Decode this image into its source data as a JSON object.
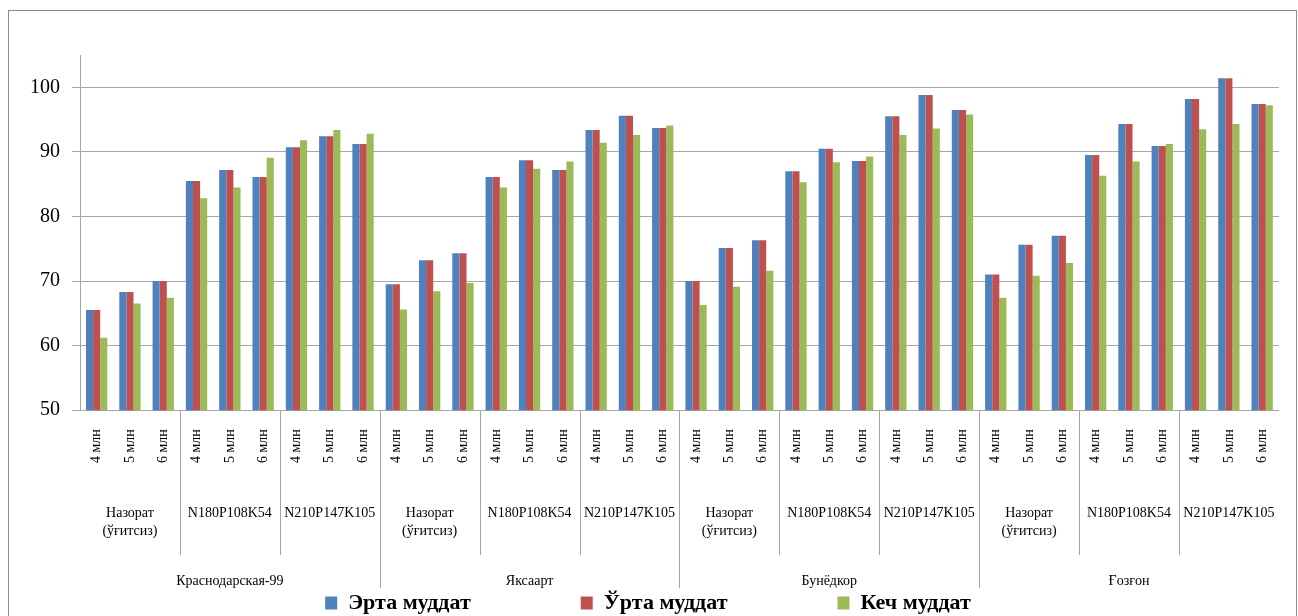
{
  "chart_data": {
    "type": "bar",
    "categories": [
      "4 млн",
      "5 млн",
      "6 млн",
      "4 млн",
      "5 млн",
      "6 млн",
      "4 млн",
      "5 млн",
      "6 млн",
      "4 млн",
      "5 млн",
      "6 млн",
      "4 млн",
      "5 млн",
      "6 млн",
      "4 млн",
      "5 млн",
      "6 млн",
      "4 млн",
      "5 млн",
      "6 млн",
      "4 млн",
      "5 млн",
      "6 млн",
      "4 млн",
      "5 млн",
      "6 млн",
      "4 млн",
      "5 млн",
      "6 млн",
      "4 млн",
      "5 млн",
      "6 млн",
      "4 млн",
      "5 млн",
      "6 млн"
    ],
    "series": [
      {
        "name": "Эрта муддат",
        "color": "#4f81bd",
        "values": [
          65.5,
          68.3,
          70.0,
          85.5,
          87.2,
          86.1,
          90.7,
          92.4,
          91.2,
          69.5,
          73.2,
          74.3,
          86.1,
          88.7,
          87.2,
          93.4,
          95.6,
          93.7,
          70.0,
          75.1,
          76.3,
          87.0,
          90.5,
          88.6,
          95.5,
          98.8,
          96.5,
          71.0,
          75.6,
          77.0,
          89.5,
          94.3,
          90.9,
          98.2,
          101.4,
          97.4
        ]
      },
      {
        "name": "Ўрта муддат",
        "color": "#c0504d",
        "values": [
          65.5,
          68.3,
          70.0,
          85.5,
          87.2,
          86.1,
          90.7,
          92.4,
          91.2,
          69.5,
          73.2,
          74.3,
          86.1,
          88.7,
          87.2,
          93.4,
          95.6,
          93.7,
          70.0,
          75.1,
          76.3,
          87.0,
          90.5,
          88.6,
          95.5,
          98.8,
          96.5,
          71.0,
          75.6,
          77.0,
          89.5,
          94.3,
          90.9,
          98.2,
          101.4,
          97.4
        ]
      },
      {
        "name": "Кеч муддат",
        "color": "#9bbb59",
        "values": [
          61.2,
          66.5,
          67.4,
          82.8,
          84.5,
          89.1,
          91.8,
          93.4,
          92.8,
          65.6,
          68.4,
          69.7,
          84.5,
          87.4,
          88.5,
          91.4,
          92.6,
          94.1,
          66.3,
          69.1,
          71.6,
          85.3,
          88.4,
          89.3,
          92.6,
          93.6,
          95.8,
          67.4,
          70.8,
          72.8,
          86.3,
          88.5,
          91.2,
          93.5,
          94.3,
          97.2
        ]
      }
    ],
    "ylim": [
      50,
      105
    ],
    "yticks": [
      50,
      60,
      70,
      80,
      90,
      100
    ],
    "grid": "y",
    "legend": "bottom",
    "annotations": [
      "Назорат (ўғитсиз)",
      "N180P108K54",
      "N210P147K105",
      "Назорат (ўғитсиз)",
      "N180P108K54",
      "N210P147K105",
      "Назорат (ўғитсиз)",
      "N180P108K54",
      "N210P147K105",
      "Назорат (ўғитсиз)",
      "N180P108K54",
      "N210P147K105",
      "Краснодарская-99",
      "Яксаарт",
      "Бунёдкор",
      "Ғозғон"
    ]
  }
}
